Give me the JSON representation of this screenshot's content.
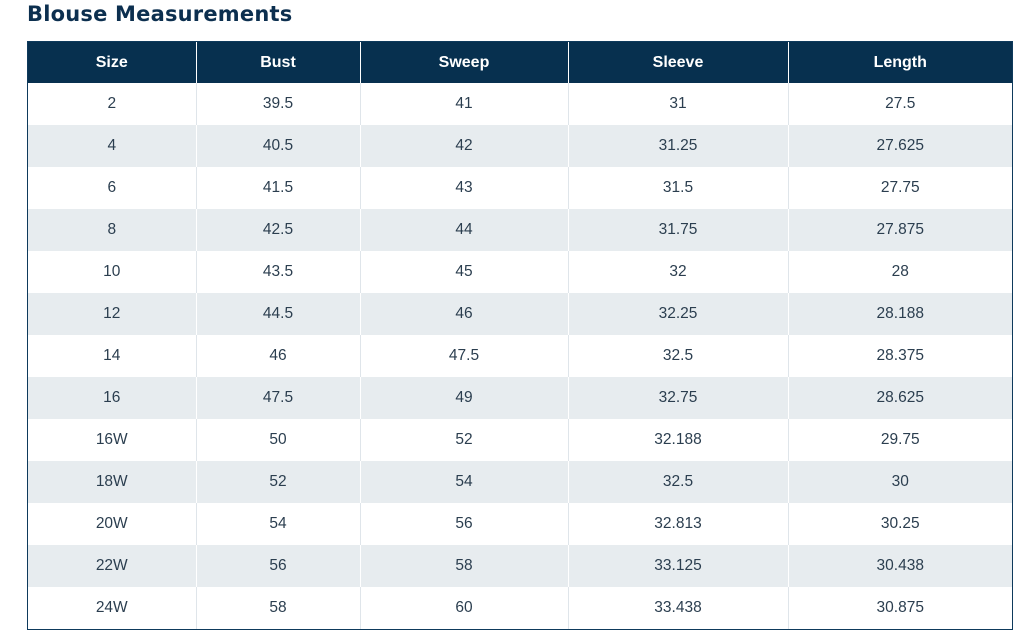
{
  "title": "Blouse Measurements",
  "table": {
    "headers": [
      "Size",
      "Bust",
      "Sweep",
      "Sleeve",
      "Length"
    ],
    "rows": [
      [
        "2",
        "39.5",
        "41",
        "31",
        "27.5"
      ],
      [
        "4",
        "40.5",
        "42",
        "31.25",
        "27.625"
      ],
      [
        "6",
        "41.5",
        "43",
        "31.5",
        "27.75"
      ],
      [
        "8",
        "42.5",
        "44",
        "31.75",
        "27.875"
      ],
      [
        "10",
        "43.5",
        "45",
        "32",
        "28"
      ],
      [
        "12",
        "44.5",
        "46",
        "32.25",
        "28.188"
      ],
      [
        "14",
        "46",
        "47.5",
        "32.5",
        "28.375"
      ],
      [
        "16",
        "47.5",
        "49",
        "32.75",
        "28.625"
      ],
      [
        "16W",
        "50",
        "52",
        "32.188",
        "29.75"
      ],
      [
        "18W",
        "52",
        "54",
        "32.5",
        "30"
      ],
      [
        "20W",
        "54",
        "56",
        "32.813",
        "30.25"
      ],
      [
        "22W",
        "56",
        "58",
        "33.125",
        "30.438"
      ],
      [
        "24W",
        "58",
        "60",
        "33.438",
        "30.875"
      ]
    ]
  },
  "colors": {
    "title": "#0c2f4f",
    "header_bg": "#07304f",
    "header_text": "#ffffff",
    "stripe": "#e7ecef",
    "cell_text": "#2b3e4f"
  }
}
